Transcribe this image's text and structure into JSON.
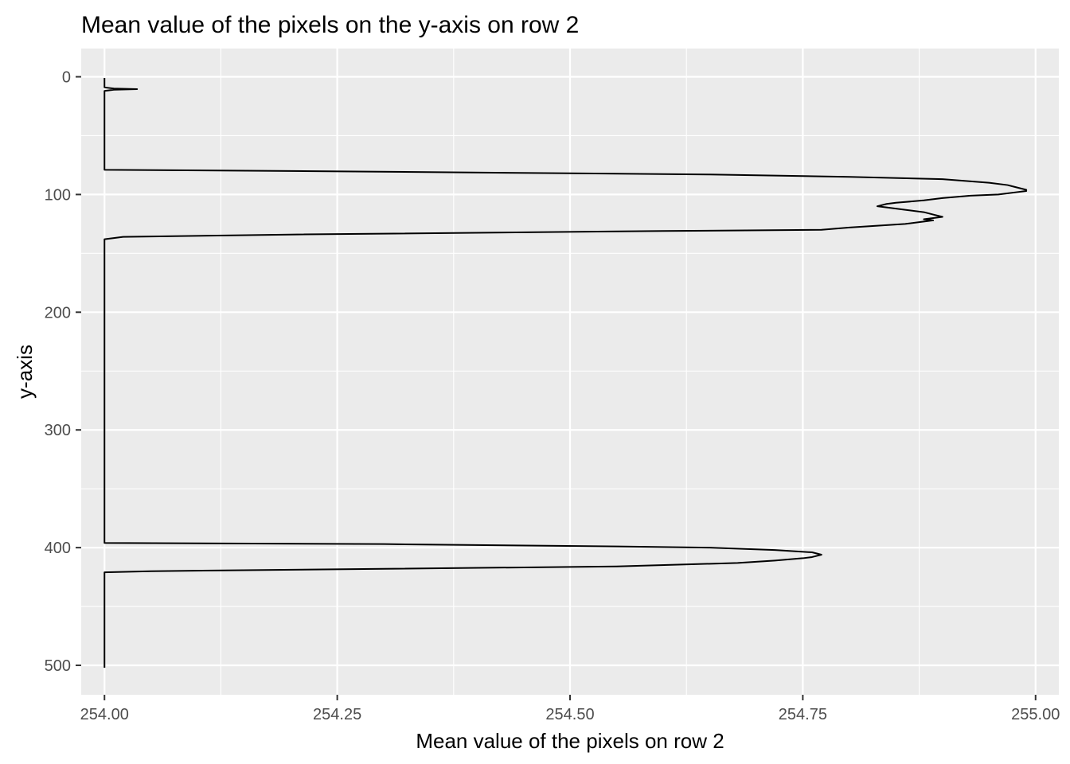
{
  "chart_data": {
    "type": "line",
    "title": "Mean value of the pixels on the y-axis on row 2",
    "xlabel": "Mean value of the pixels on row 2",
    "ylabel": "y-axis",
    "xlim": [
      253.975,
      255.025
    ],
    "ylim": [
      525,
      -24
    ],
    "y_reversed": true,
    "x_ticks": [
      254.0,
      254.25,
      254.5,
      254.75,
      255.0
    ],
    "x_tick_labels": [
      "254.00",
      "254.25",
      "254.50",
      "254.75",
      "255.00"
    ],
    "y_ticks": [
      0,
      100,
      200,
      300,
      400,
      500
    ],
    "y_tick_labels": [
      "0",
      "100",
      "200",
      "300",
      "400",
      "500"
    ],
    "grid": true,
    "legend": "none",
    "background_color": "#ebebeb",
    "grid_color": "#ffffff",
    "line_color": "#000000",
    "series": [
      {
        "points": [
          [
            254.0,
            1
          ],
          [
            254.0,
            9
          ],
          [
            254.01,
            10
          ],
          [
            254.035,
            10.5
          ],
          [
            254.01,
            11
          ],
          [
            254.0,
            12
          ],
          [
            254.0,
            20
          ],
          [
            254.0,
            40
          ],
          [
            254.0,
            60
          ],
          [
            254.0,
            79
          ],
          [
            254.2,
            80
          ],
          [
            254.5,
            82
          ],
          [
            254.65,
            83
          ],
          [
            254.8,
            85
          ],
          [
            254.9,
            87
          ],
          [
            254.95,
            90
          ],
          [
            254.97,
            92
          ],
          [
            254.99,
            96
          ],
          [
            254.99,
            97
          ],
          [
            254.98,
            98
          ],
          [
            254.96,
            100
          ],
          [
            254.93,
            101
          ],
          [
            254.9,
            103
          ],
          [
            254.88,
            105
          ],
          [
            254.85,
            107
          ],
          [
            254.84,
            108
          ],
          [
            254.83,
            110
          ],
          [
            254.84,
            111
          ],
          [
            254.86,
            113
          ],
          [
            254.88,
            115
          ],
          [
            254.89,
            117
          ],
          [
            254.9,
            119
          ],
          [
            254.89,
            120
          ],
          [
            254.88,
            121
          ],
          [
            254.89,
            122
          ],
          [
            254.88,
            123
          ],
          [
            254.86,
            125
          ],
          [
            254.8,
            128
          ],
          [
            254.77,
            130
          ],
          [
            254.6,
            131
          ],
          [
            254.2,
            134
          ],
          [
            254.02,
            136
          ],
          [
            254.0,
            138
          ],
          [
            254.0,
            150
          ],
          [
            254.0,
            200
          ],
          [
            254.0,
            250
          ],
          [
            254.0,
            300
          ],
          [
            254.0,
            350
          ],
          [
            254.0,
            396
          ],
          [
            254.3,
            397
          ],
          [
            254.55,
            399
          ],
          [
            254.65,
            400
          ],
          [
            254.72,
            402
          ],
          [
            254.76,
            404
          ],
          [
            254.77,
            406
          ],
          [
            254.76,
            408
          ],
          [
            254.75,
            409
          ],
          [
            254.72,
            411
          ],
          [
            254.68,
            413
          ],
          [
            254.55,
            416
          ],
          [
            254.3,
            418
          ],
          [
            254.05,
            420
          ],
          [
            254.0,
            421
          ],
          [
            254.0,
            440
          ],
          [
            254.0,
            460
          ],
          [
            254.0,
            480
          ],
          [
            254.0,
            502
          ]
        ]
      }
    ]
  }
}
